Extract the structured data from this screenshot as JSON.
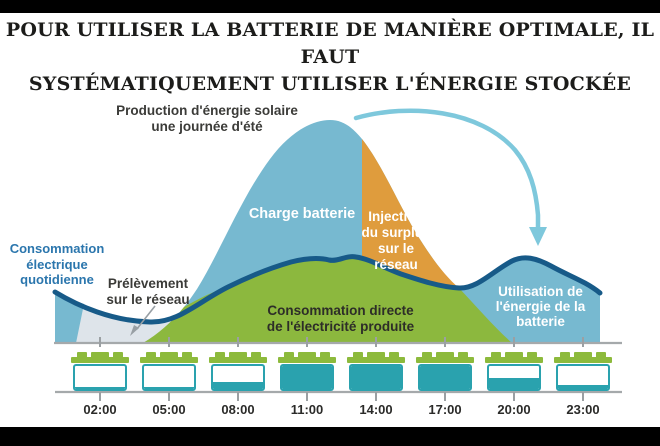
{
  "title": {
    "text": "POUR UTILISER LA BATTERIE DE MANIÈRE OPTIMALE, IL FAUT\nSYSTÉMATIQUEMENT UTILISER L'ÉNERGIE STOCKÉE"
  },
  "annotations": {
    "production": "Production d'énergie solaire\nune journée d'été",
    "charge_batterie": "Charge batterie",
    "injection_surplus": "Injection\ndu surplus\nsur le\nréseau",
    "consommation_quotidienne": "Consommation\nélectrique\nquotidienne",
    "prelevement_reseau": "Prélèvement\nsur le réseau",
    "consommation_directe": "Consommation directe\nde l'électricité produite",
    "utilisation_batterie": "Utilisation de\nl'énergie de la\nbatterie"
  },
  "timeline": {
    "times": [
      "02:00",
      "05:00",
      "08:00",
      "11:00",
      "14:00",
      "17:00",
      "20:00",
      "23:00"
    ]
  },
  "batteries": {
    "levels_percent": [
      10,
      10,
      30,
      100,
      100,
      100,
      48,
      18
    ]
  },
  "colors": {
    "solar_area_blue": "#77b9d0",
    "surplus_orange": "#df9c3d",
    "direct_green": "#8cb83e",
    "grid_gray_area": "#dee4ea",
    "consumption_line_navy": "#175a88",
    "battery_teal": "#2aa2ae",
    "battery_cap_green": "#8dba3c",
    "arrow_blue": "#7ec8dc",
    "axis_gray": "#a5a9ab",
    "label_blue_text": "#2b76ad"
  },
  "chart_data": {
    "type": "area",
    "title": "Production d'énergie solaire une journée d'été",
    "x_unit": "hour of day",
    "x_ticks_shown": [
      "02:00",
      "05:00",
      "08:00",
      "11:00",
      "14:00",
      "17:00",
      "20:00",
      "23:00"
    ],
    "x": [
      0,
      1,
      2,
      3,
      4,
      5,
      6,
      7,
      8,
      9,
      10,
      11,
      12,
      13,
      14,
      15,
      16,
      17,
      18,
      19,
      20,
      21,
      22,
      23,
      24
    ],
    "series": [
      {
        "name": "Production d'énergie solaire (une journée d'été)",
        "values": [
          0,
          0,
          0,
          0,
          0,
          5,
          18,
          35,
          53,
          70,
          85,
          96,
          100,
          96,
          83,
          66,
          48,
          32,
          19,
          8,
          0,
          0,
          0,
          0,
          0
        ]
      },
      {
        "name": "Consommation électrique quotidienne",
        "values": [
          23,
          18,
          14,
          11,
          9,
          9,
          16,
          22,
          27,
          31,
          35,
          38,
          37,
          39,
          35,
          31,
          28,
          26,
          25,
          33,
          38,
          36,
          34,
          28,
          23
        ]
      }
    ],
    "units": "relative (peak solar production = 100)",
    "regions": [
      {
        "label": "Prélèvement sur le réseau",
        "meaning": "grid supply at night before sunrise",
        "approx_hours": [
          1,
          6
        ]
      },
      {
        "label": "Consommation directe de l'électricité produite",
        "meaning": "solar consumed directly",
        "approx_hours": [
          6,
          20
        ]
      },
      {
        "label": "Charge batterie",
        "meaning": "surplus solar charging battery",
        "approx_hours": [
          6,
          13.5
        ]
      },
      {
        "label": "Injection du surplus sur le réseau",
        "meaning": "surplus exported to grid",
        "approx_hours": [
          13.5,
          17.5
        ]
      },
      {
        "label": "Utilisation de l'énergie de la batterie",
        "meaning": "battery discharge in evening",
        "approx_hours": [
          17.5,
          24
        ]
      }
    ],
    "battery_charge_percent": {
      "times": [
        "02:00",
        "05:00",
        "08:00",
        "11:00",
        "14:00",
        "17:00",
        "20:00",
        "23:00"
      ],
      "values": [
        10,
        10,
        30,
        100,
        100,
        100,
        48,
        18
      ]
    },
    "legend_position": "labels inside areas",
    "grid": false
  }
}
